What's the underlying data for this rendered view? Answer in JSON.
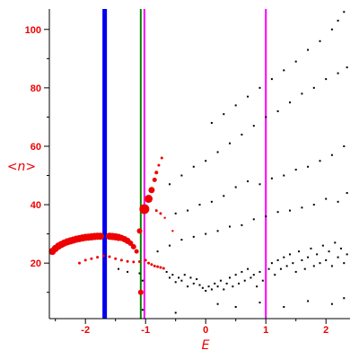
{
  "chart_data": {
    "type": "scatter",
    "title": "",
    "xlabel": "E",
    "ylabel": "<n>",
    "xlim": [
      -2.6,
      2.4
    ],
    "ylim": [
      1,
      107
    ],
    "x_ticks": [
      -2,
      -1,
      0,
      1,
      2
    ],
    "x_tick_labels": [
      "-2",
      "-1",
      "0",
      "1",
      "2"
    ],
    "y_ticks": [
      20,
      40,
      60,
      80,
      100
    ],
    "y_tick_labels": [
      "20",
      "40",
      "60",
      "80",
      "100"
    ],
    "grid": false,
    "vertical_lines": [
      {
        "x": -1.68,
        "color": "#0000ee",
        "weight": "thick"
      },
      {
        "x": -1.08,
        "color": "#008800",
        "weight": "thin"
      },
      {
        "x": -1.02,
        "color": "#ff00ff",
        "weight": "thin"
      },
      {
        "x": 1.0,
        "color": "#ff00ff",
        "weight": "thin"
      }
    ],
    "series": [
      {
        "color": "#ee0000",
        "points": [
          {
            "x": -2.55,
            "y": 24.0,
            "s": 4
          },
          {
            "x": -2.5,
            "y": 25.0,
            "s": 4
          },
          {
            "x": -2.45,
            "y": 25.8,
            "s": 4
          },
          {
            "x": -2.4,
            "y": 26.4,
            "s": 4
          },
          {
            "x": -2.35,
            "y": 26.9,
            "s": 4
          },
          {
            "x": -2.3,
            "y": 27.3,
            "s": 4
          },
          {
            "x": -2.25,
            "y": 27.6,
            "s": 4
          },
          {
            "x": -2.2,
            "y": 27.9,
            "s": 4
          },
          {
            "x": -2.15,
            "y": 28.2,
            "s": 4
          },
          {
            "x": -2.1,
            "y": 28.4,
            "s": 4
          },
          {
            "x": -2.05,
            "y": 28.6,
            "s": 4
          },
          {
            "x": -2.0,
            "y": 28.8,
            "s": 4
          },
          {
            "x": -1.95,
            "y": 28.9,
            "s": 4
          },
          {
            "x": -1.9,
            "y": 29.0,
            "s": 4
          },
          {
            "x": -1.85,
            "y": 29.1,
            "s": 4
          },
          {
            "x": -1.8,
            "y": 29.2,
            "s": 4
          },
          {
            "x": -1.75,
            "y": 29.2,
            "s": 4
          },
          {
            "x": -1.6,
            "y": 29.2,
            "s": 4
          },
          {
            "x": -1.55,
            "y": 29.1,
            "s": 4
          },
          {
            "x": -1.5,
            "y": 29.0,
            "s": 4
          },
          {
            "x": -1.45,
            "y": 28.8,
            "s": 4
          },
          {
            "x": -1.4,
            "y": 28.6,
            "s": 3.5
          },
          {
            "x": -1.35,
            "y": 28.2,
            "s": 3.5
          },
          {
            "x": -1.3,
            "y": 27.6,
            "s": 3.5
          },
          {
            "x": -1.25,
            "y": 26.8,
            "s": 3
          },
          {
            "x": -1.2,
            "y": 25.6,
            "s": 3
          },
          {
            "x": -1.15,
            "y": 24.0,
            "s": 2.5
          },
          {
            "x": -1.1,
            "y": 31.0,
            "s": 3
          },
          {
            "x": -1.08,
            "y": 10.0,
            "s": 3
          },
          {
            "x": -1.02,
            "y": 38.5,
            "s": 5.5
          },
          {
            "x": -0.95,
            "y": 42.0,
            "s": 4.5
          },
          {
            "x": -0.9,
            "y": 45.0,
            "s": 3.5
          },
          {
            "x": -0.85,
            "y": 48.5,
            "s": 2.5
          },
          {
            "x": -0.82,
            "y": 51.0,
            "s": 2
          },
          {
            "x": -0.78,
            "y": 53.5,
            "s": 1.5
          },
          {
            "x": -0.73,
            "y": 56.0,
            "s": 1.5
          },
          {
            "x": -0.82,
            "y": 38.0,
            "s": 1.5
          },
          {
            "x": -0.75,
            "y": 37.0,
            "s": 1.5
          },
          {
            "x": -0.68,
            "y": 35.5,
            "s": 1.2
          },
          {
            "x": -0.55,
            "y": 31.0,
            "s": 1.2
          },
          {
            "x": -2.1,
            "y": 20.0,
            "s": 1.5
          },
          {
            "x": -2.0,
            "y": 21.0,
            "s": 1.5
          },
          {
            "x": -1.9,
            "y": 21.5,
            "s": 1.5
          },
          {
            "x": -1.8,
            "y": 22.0,
            "s": 1.5
          },
          {
            "x": -1.7,
            "y": 22.5,
            "s": 1.5
          },
          {
            "x": -1.6,
            "y": 22.2,
            "s": 1.5
          },
          {
            "x": -1.5,
            "y": 21.5,
            "s": 1.5
          },
          {
            "x": -1.4,
            "y": 21.0,
            "s": 1.5
          },
          {
            "x": -1.3,
            "y": 20.6,
            "s": 1.5
          },
          {
            "x": -1.2,
            "y": 20.4,
            "s": 1.5
          },
          {
            "x": -1.1,
            "y": 20.5,
            "s": 1.5
          },
          {
            "x": -1.0,
            "y": 21.0,
            "s": 1.5
          },
          {
            "x": -0.95,
            "y": 20.0,
            "s": 1.5
          },
          {
            "x": -0.9,
            "y": 19.5,
            "s": 1.5
          },
          {
            "x": -0.85,
            "y": 19.0,
            "s": 1.5
          },
          {
            "x": -0.8,
            "y": 18.8,
            "s": 1.5
          },
          {
            "x": -0.75,
            "y": 18.5,
            "s": 1.5
          },
          {
            "x": -0.7,
            "y": 18.2,
            "s": 1.5
          }
        ]
      },
      {
        "color": "#000000",
        "points": [
          {
            "x": -1.45,
            "y": 18.0,
            "s": 0.9
          },
          {
            "x": -1.3,
            "y": 17.0,
            "s": 0.9
          },
          {
            "x": -1.1,
            "y": 16.5,
            "s": 0.9
          },
          {
            "x": -1.05,
            "y": 14.0,
            "s": 0.9
          },
          {
            "x": -0.65,
            "y": 17.0,
            "s": 0.9
          },
          {
            "x": -0.6,
            "y": 15.0,
            "s": 0.9
          },
          {
            "x": -0.55,
            "y": 16.0,
            "s": 0.9
          },
          {
            "x": -0.5,
            "y": 13.5,
            "s": 0.9
          },
          {
            "x": -0.45,
            "y": 15.0,
            "s": 0.9
          },
          {
            "x": -0.4,
            "y": 14.0,
            "s": 0.9
          },
          {
            "x": -0.35,
            "y": 16.0,
            "s": 0.9
          },
          {
            "x": -0.3,
            "y": 12.0,
            "s": 0.9
          },
          {
            "x": -0.25,
            "y": 15.0,
            "s": 0.9
          },
          {
            "x": -0.2,
            "y": 13.0,
            "s": 0.9
          },
          {
            "x": -0.15,
            "y": 14.5,
            "s": 0.9
          },
          {
            "x": -0.1,
            "y": 12.5,
            "s": 0.9
          },
          {
            "x": -0.05,
            "y": 11.5,
            "s": 0.9
          },
          {
            "x": 0.0,
            "y": 10.5,
            "s": 0.9
          },
          {
            "x": 0.05,
            "y": 12.0,
            "s": 0.9
          },
          {
            "x": 0.1,
            "y": 11.0,
            "s": 0.9
          },
          {
            "x": 0.15,
            "y": 13.0,
            "s": 0.9
          },
          {
            "x": 0.2,
            "y": 12.0,
            "s": 0.9
          },
          {
            "x": 0.25,
            "y": 14.0,
            "s": 0.9
          },
          {
            "x": 0.3,
            "y": 11.0,
            "s": 0.9
          },
          {
            "x": 0.35,
            "y": 13.0,
            "s": 0.9
          },
          {
            "x": 0.4,
            "y": 15.0,
            "s": 0.9
          },
          {
            "x": 0.45,
            "y": 12.0,
            "s": 0.9
          },
          {
            "x": 0.5,
            "y": 16.0,
            "s": 0.9
          },
          {
            "x": 0.55,
            "y": 13.0,
            "s": 0.9
          },
          {
            "x": 0.6,
            "y": 17.0,
            "s": 0.9
          },
          {
            "x": 0.65,
            "y": 14.0,
            "s": 0.9
          },
          {
            "x": 0.7,
            "y": 18.0,
            "s": 0.9
          },
          {
            "x": 0.75,
            "y": 15.0,
            "s": 0.9
          },
          {
            "x": 0.8,
            "y": 16.0,
            "s": 0.9
          },
          {
            "x": 0.85,
            "y": 12.0,
            "s": 0.9
          },
          {
            "x": 0.9,
            "y": 17.0,
            "s": 0.9
          },
          {
            "x": 0.95,
            "y": 14.0,
            "s": 0.9
          },
          {
            "x": 1.05,
            "y": 18.0,
            "s": 0.9
          },
          {
            "x": 1.1,
            "y": 20.0,
            "s": 0.9
          },
          {
            "x": 1.15,
            "y": 16.0,
            "s": 0.9
          },
          {
            "x": 1.2,
            "y": 21.0,
            "s": 0.9
          },
          {
            "x": 1.25,
            "y": 18.0,
            "s": 0.9
          },
          {
            "x": 1.3,
            "y": 22.0,
            "s": 0.9
          },
          {
            "x": 1.35,
            "y": 19.0,
            "s": 0.9
          },
          {
            "x": 1.4,
            "y": 23.0,
            "s": 0.9
          },
          {
            "x": 1.45,
            "y": 20.0,
            "s": 0.9
          },
          {
            "x": 1.5,
            "y": 17.0,
            "s": 0.9
          },
          {
            "x": 1.55,
            "y": 24.0,
            "s": 0.9
          },
          {
            "x": 1.6,
            "y": 21.0,
            "s": 0.9
          },
          {
            "x": 1.65,
            "y": 18.0,
            "s": 0.9
          },
          {
            "x": 1.7,
            "y": 22.0,
            "s": 0.9
          },
          {
            "x": 1.75,
            "y": 25.0,
            "s": 0.9
          },
          {
            "x": 1.8,
            "y": 19.0,
            "s": 0.9
          },
          {
            "x": 1.85,
            "y": 23.0,
            "s": 0.9
          },
          {
            "x": 1.9,
            "y": 20.0,
            "s": 0.9
          },
          {
            "x": 1.95,
            "y": 26.0,
            "s": 0.9
          },
          {
            "x": 2.0,
            "y": 21.0,
            "s": 0.9
          },
          {
            "x": 2.05,
            "y": 24.0,
            "s": 0.9
          },
          {
            "x": 2.1,
            "y": 19.0,
            "s": 0.9
          },
          {
            "x": 2.15,
            "y": 27.0,
            "s": 0.9
          },
          {
            "x": 2.2,
            "y": 22.0,
            "s": 0.9
          },
          {
            "x": 2.25,
            "y": 25.0,
            "s": 0.9
          },
          {
            "x": 2.3,
            "y": 20.0,
            "s": 0.9
          },
          {
            "x": 2.35,
            "y": 23.0,
            "s": 0.9
          },
          {
            "x": -1.05,
            "y": 4.0,
            "s": 0.9
          },
          {
            "x": -0.5,
            "y": 3.0,
            "s": 0.9
          },
          {
            "x": 0.2,
            "y": 6.0,
            "s": 0.9
          },
          {
            "x": 0.5,
            "y": 5.0,
            "s": 0.9
          },
          {
            "x": 0.9,
            "y": 6.5,
            "s": 0.9
          },
          {
            "x": 1.3,
            "y": 5.0,
            "s": 0.9
          },
          {
            "x": 1.7,
            "y": 7.0,
            "s": 0.9
          },
          {
            "x": 2.1,
            "y": 6.0,
            "s": 0.9
          },
          {
            "x": 2.3,
            "y": 8.0,
            "s": 0.9
          },
          {
            "x": -0.8,
            "y": 24.0,
            "s": 0.9
          },
          {
            "x": -0.6,
            "y": 26.0,
            "s": 0.9
          },
          {
            "x": -0.4,
            "y": 28.0,
            "s": 0.9
          },
          {
            "x": -0.2,
            "y": 29.0,
            "s": 0.9
          },
          {
            "x": 0.0,
            "y": 30.0,
            "s": 0.9
          },
          {
            "x": 0.2,
            "y": 31.0,
            "s": 0.9
          },
          {
            "x": 0.4,
            "y": 32.5,
            "s": 0.9
          },
          {
            "x": 0.6,
            "y": 33.0,
            "s": 0.9
          },
          {
            "x": 0.8,
            "y": 35.0,
            "s": 0.9
          },
          {
            "x": 1.0,
            "y": 36.0,
            "s": 0.9
          },
          {
            "x": 1.2,
            "y": 37.5,
            "s": 0.9
          },
          {
            "x": 1.4,
            "y": 38.0,
            "s": 0.9
          },
          {
            "x": 1.6,
            "y": 39.0,
            "s": 0.9
          },
          {
            "x": 1.8,
            "y": 40.0,
            "s": 0.9
          },
          {
            "x": 2.0,
            "y": 42.0,
            "s": 0.9
          },
          {
            "x": 2.2,
            "y": 41.0,
            "s": 0.9
          },
          {
            "x": 2.35,
            "y": 44.0,
            "s": 0.9
          },
          {
            "x": -0.5,
            "y": 37.0,
            "s": 0.9
          },
          {
            "x": -0.3,
            "y": 38.0,
            "s": 0.9
          },
          {
            "x": -0.1,
            "y": 40.0,
            "s": 0.9
          },
          {
            "x": 0.1,
            "y": 41.0,
            "s": 0.9
          },
          {
            "x": 0.3,
            "y": 43.0,
            "s": 0.9
          },
          {
            "x": 0.5,
            "y": 46.0,
            "s": 0.9
          },
          {
            "x": 0.7,
            "y": 48.0,
            "s": 0.9
          },
          {
            "x": 0.9,
            "y": 47.0,
            "s": 0.9
          },
          {
            "x": 1.1,
            "y": 49.0,
            "s": 0.9
          },
          {
            "x": 1.3,
            "y": 50.0,
            "s": 0.9
          },
          {
            "x": 1.5,
            "y": 52.0,
            "s": 0.9
          },
          {
            "x": 1.7,
            "y": 53.0,
            "s": 0.9
          },
          {
            "x": 1.9,
            "y": 55.0,
            "s": 0.9
          },
          {
            "x": 2.1,
            "y": 57.0,
            "s": 0.9
          },
          {
            "x": 2.3,
            "y": 60.0,
            "s": 0.9
          },
          {
            "x": -0.6,
            "y": 47.0,
            "s": 0.9
          },
          {
            "x": -0.4,
            "y": 50.0,
            "s": 0.9
          },
          {
            "x": -0.2,
            "y": 53.0,
            "s": 0.9
          },
          {
            "x": 0.0,
            "y": 55.0,
            "s": 0.9
          },
          {
            "x": 0.2,
            "y": 58.0,
            "s": 0.9
          },
          {
            "x": 0.4,
            "y": 61.0,
            "s": 0.9
          },
          {
            "x": 0.6,
            "y": 64.0,
            "s": 0.9
          },
          {
            "x": 0.8,
            "y": 67.0,
            "s": 0.9
          },
          {
            "x": 1.0,
            "y": 70.0,
            "s": 0.9
          },
          {
            "x": 1.2,
            "y": 72.0,
            "s": 0.9
          },
          {
            "x": 1.4,
            "y": 75.0,
            "s": 0.9
          },
          {
            "x": 1.6,
            "y": 78.0,
            "s": 0.9
          },
          {
            "x": 1.8,
            "y": 80.0,
            "s": 0.9
          },
          {
            "x": 2.0,
            "y": 83.0,
            "s": 0.9
          },
          {
            "x": 2.2,
            "y": 85.0,
            "s": 0.9
          },
          {
            "x": 2.35,
            "y": 87.0,
            "s": 0.9
          },
          {
            "x": 0.1,
            "y": 68.0,
            "s": 0.9
          },
          {
            "x": 0.3,
            "y": 71.0,
            "s": 0.9
          },
          {
            "x": 0.5,
            "y": 74.0,
            "s": 0.9
          },
          {
            "x": 0.7,
            "y": 77.0,
            "s": 0.9
          },
          {
            "x": 0.9,
            "y": 80.0,
            "s": 0.9
          },
          {
            "x": 1.1,
            "y": 83.0,
            "s": 0.9
          },
          {
            "x": 1.3,
            "y": 86.0,
            "s": 0.9
          },
          {
            "x": 1.5,
            "y": 89.0,
            "s": 0.9
          },
          {
            "x": 1.7,
            "y": 93.0,
            "s": 0.9
          },
          {
            "x": 1.9,
            "y": 96.0,
            "s": 0.9
          },
          {
            "x": 2.1,
            "y": 100.0,
            "s": 0.9
          },
          {
            "x": 2.2,
            "y": 103.0,
            "s": 0.9
          },
          {
            "x": 2.3,
            "y": 106.0,
            "s": 0.9
          }
        ]
      }
    ]
  }
}
